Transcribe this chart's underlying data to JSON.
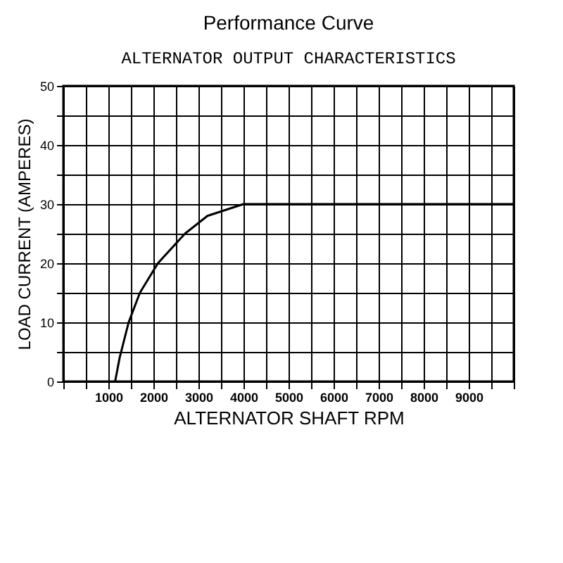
{
  "chart_data": {
    "type": "line",
    "title": "Performance Curve",
    "subtitle": "ALTERNATOR OUTPUT CHARACTERISTICS",
    "xlabel": "ALTERNATOR SHAFT RPM",
    "ylabel": "LOAD CURRENT (AMPERES)",
    "x": [
      1150,
      1250,
      1450,
      1700,
      2100,
      2700,
      3200,
      4000,
      10000
    ],
    "series": [
      {
        "color": "#000000",
        "values": [
          0,
          4,
          10,
          15,
          20,
          25,
          28,
          30,
          30
        ]
      }
    ],
    "xlim": [
      0,
      10000
    ],
    "xticks": [
      {
        "value": 0,
        "label": null
      },
      {
        "value": 500,
        "label": null
      },
      1000,
      {
        "value": 1500,
        "label": null
      },
      2000,
      {
        "value": 2500,
        "label": null
      },
      3000,
      {
        "value": 3500,
        "label": null
      },
      4000,
      {
        "value": 4500,
        "label": null
      },
      5000,
      {
        "value": 5500,
        "label": null
      },
      6000,
      {
        "value": 6500,
        "label": null
      },
      7000,
      {
        "value": 7500,
        "label": null
      },
      8000,
      {
        "value": 8500,
        "label": null
      },
      9000,
      {
        "value": 9500,
        "label": null
      },
      {
        "value": 10000,
        "label": null
      }
    ],
    "ylim": [
      0,
      50
    ],
    "yticks": [
      0,
      {
        "value": 5,
        "label": null
      },
      10,
      {
        "value": 15,
        "label": null
      },
      20,
      {
        "value": 25,
        "label": null
      },
      30,
      {
        "value": 35,
        "label": null
      },
      40,
      {
        "value": 45,
        "label": null
      },
      50
    ],
    "grid": true,
    "marker": "none",
    "line_style": "solid"
  }
}
